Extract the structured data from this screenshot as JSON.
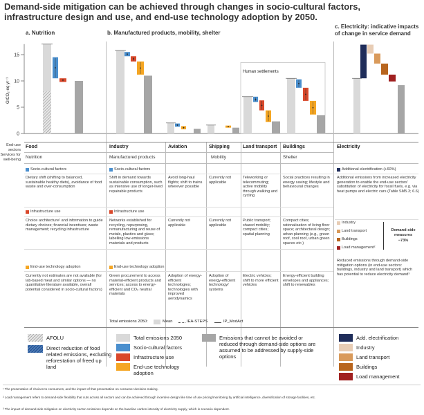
{
  "title": "Demand-side mitigation can be achieved through changes in socio-cultural factors, infrastructure design and use, and end-use technology adoption by 2050.",
  "panels": {
    "a": "a. Nutrition",
    "b": "b. Manufactured products, mobility, shelter",
    "c": "c. Electricity: indicative impacts of change in service demand"
  },
  "human_settlements": "Human settlements",
  "row_labels": {
    "sectors": "End-use sectors",
    "services": "Services for well-being"
  },
  "sectors": [
    "Food",
    "Industry",
    "Aviation",
    "Shipping",
    "Land transport",
    "Buildings",
    "Electricity"
  ],
  "services": {
    "nutrition": "Nutrition",
    "manufactured": "Manufactured products",
    "mobility": "Mobility",
    "shelter": "Shelter"
  },
  "headers": {
    "socio": "Socio-cultural factors",
    "infra": "Infrastructure use",
    "tech": "End-use technology adoption",
    "add_elec": "Additional electrification (+60%)"
  },
  "text": {
    "food_socio": "Dietary shift (shifting to balanced, sustainable healthy diets), avoidance of food waste and over-consumption",
    "food_infra": "Choice architecture¹ and information to guide dietary choices; financial incentives; waste management; recycling infrastructure",
    "food_tech": "Currently not estimates are not available (for lab-based meat and similar options — no quantitative literature available, overall potential considered in socio-cultural factors)",
    "industry_socio": "Shift in demand towards sustainable consumption, such as intensive use of longer-lived repairable products",
    "industry_infra": "Networks established for recycling, repurposing, remanufacturing and reuse of metals, plastics and glass; labelling low-emissions materials and products",
    "industry_tech": "Green procurement to access material-efficient products and services; access to energy-efficient and CO₂ neutral materials",
    "aviation_socio": "Avoid long-haul flights; shift to trains wherever possible",
    "aviation_infra": "Currently not applicable",
    "aviation_tech": "Adoption of energy-efficient technologies; technologies with improved aerodynamics",
    "shipping_socio": "Currently not applicable",
    "shipping_infra": "Currently not applicable",
    "shipping_tech": "Adoption of energy-efficient technology/ systems",
    "land_socio": "Teleworking or telecommuting; active mobility through walking and cycling",
    "land_infra": "Public transport; shared mobility; compact cities; spatial planning",
    "land_tech": "Electric vehicles; shift to more efficient vehicles",
    "build_socio": "Social practices resulting in energy saving; lifestyle and behavioural changes",
    "build_infra": "Compact cities; rationalisation of living floor space; architectural design; urban planning (e.g., green roof, cool roof, urban green spaces etc.)",
    "build_tech": "Energy-efficient building envelopes and appliances; shift to renewables",
    "elec_add": "Additional emissions from increased electricity generation to enable the end-use sectors' substitution of electricity for fossil fuels, e.g. via heat pumps and electric cars (Table SM5.3; 6.6)",
    "elec_reduce": "Reduced emissions through demand-side mitigation options (in end-use sectors: buildings, industry and land transport) which has potential to reduce electricity demand³"
  },
  "elec_legend": [
    "Industry",
    "Land transport",
    "Buildings",
    "Load management²"
  ],
  "dsm_label": "Demand-side measures",
  "dsm_value": "−73%",
  "total_line": {
    "label": "Total emissions 2050:",
    "mean": "Mean",
    "ieasteps": "IEA-STEPS",
    "ipmodact": "IP_ModAct"
  },
  "legend": {
    "afolu": "AFOLU",
    "direct": "Direct reduction of food related emissions, excluding reforestation of freed up land",
    "total": "Total emissions 2050",
    "socio": "Socio-cultural factors",
    "infra": "Infrastructure use",
    "tech": "End-use technology adoption",
    "supply": "Emissions that cannot be avoided or reduced through demand-side options are assumed to be addressed by supply-side options",
    "add_elec": "Add. electrification",
    "industry": "Industry",
    "land": "Land transport",
    "buildings": "Buildings",
    "load": "Load management"
  },
  "footnotes": [
    "¹ The presentation of choices to consumers, and the impact of that presentation on consumer decision-making.",
    "² Load management refers to demand-side flexibility that cuts across all sectors and can be achieved through incentive design like time of use pricing/monitoring by artificial intelligence, diversification of storage facilities, etc.",
    "³ The impact of demand-side mitigation on electricity sector emissions depends on the baseline carbon intensity of electricity supply, which is scenario dependent."
  ],
  "colors": {
    "total": "#d9d9d9",
    "socio": "#4a8fce",
    "infra": "#d9482b",
    "tech": "#f5a623",
    "supply": "#a6a6a6",
    "afolu": "#c8c8c8",
    "add_elec": "#1f2d5a",
    "industry": "#e8cdb5",
    "land": "#d99a5b",
    "buildings": "#b8651e",
    "load": "#a02020"
  },
  "chart_data": {
    "type": "bar",
    "ylabel": "GtCO₂-eq yr⁻¹",
    "ylim": [
      0,
      17
    ],
    "yticks": [
      0,
      5,
      10,
      15
    ],
    "series": [
      {
        "sector": "Food",
        "total": 17,
        "afolu": 8,
        "socio": [
          14.5,
          10.5
        ],
        "infra": [
          10.5,
          9.8
        ],
        "supply": 10
      },
      {
        "sector": "Industry",
        "total": 15.8,
        "socio": [
          15.5,
          14.7
        ],
        "infra": [
          14.7,
          13.7
        ],
        "tech": [
          13.7,
          11.2
        ],
        "supply": 11
      },
      {
        "sector": "Aviation",
        "total": 2,
        "socio": [
          1.9,
          1.3
        ],
        "tech": [
          1.4,
          0.8
        ],
        "supply": 0.9
      },
      {
        "sector": "Shipping",
        "total": 1.6,
        "tech": [
          1.5,
          1.1
        ],
        "supply": 1.1
      },
      {
        "sector": "Land transport",
        "total": 7,
        "socio": [
          7,
          6
        ],
        "infra": [
          6.3,
          4.4
        ],
        "tech": [
          4.4,
          2.2
        ],
        "supply": 2.3
      },
      {
        "sector": "Buildings",
        "total": 10.5,
        "socio": [
          10.3,
          8.7
        ],
        "infra": [
          8.7,
          6.2
        ],
        "tech": [
          6.2,
          3.6
        ],
        "supply": 3.5
      },
      {
        "sector": "Electricity",
        "total": 10.5,
        "add_elec": [
          10.5,
          16.9
        ],
        "industry": [
          16.9,
          15.2
        ],
        "land": [
          15.2,
          13.3
        ],
        "buildings": [
          13.3,
          11.2
        ],
        "load": [
          11.2,
          9.9
        ],
        "supply": 9.2
      }
    ]
  }
}
